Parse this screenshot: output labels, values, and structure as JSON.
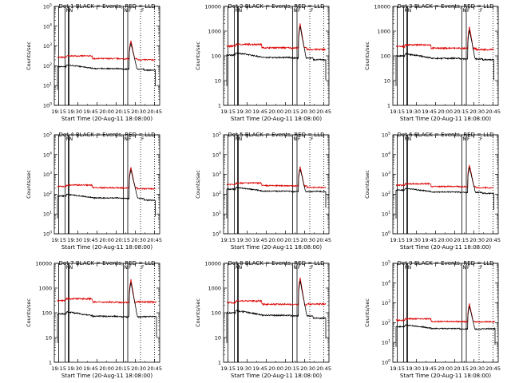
{
  "figure": {
    "title_prefix": "Det ",
    "title_suffix": " BLACK = Events, RED = LLD",
    "xlabel": "Start Time (20-Aug-11 18:08:00)",
    "ylabel": "Counts/sec",
    "colors": {
      "events": "#000000",
      "lld": "#dd0000",
      "axes": "#000000"
    }
  },
  "chart_data": [
    {
      "type": "line",
      "title": "Det 1  BLACK = Events, RED = LLD",
      "detector": "1",
      "y_scale": "log",
      "ylim": [
        1,
        100000
      ],
      "ytick_style": "exp",
      "yticks": [
        1,
        10,
        100,
        1000,
        10000,
        100000
      ],
      "yticklabels": [
        "10^0",
        "10^1",
        "10^2",
        "10^3",
        "10^4",
        "10^5"
      ],
      "xticklabels": [
        "19:15",
        "19:30",
        "19:45",
        "20:00",
        "20:15",
        "20:30",
        "20:45"
      ],
      "events_base": 100,
      "events_fall": 60,
      "events_end_min": 153,
      "lld_base": 280,
      "lld_end": 190,
      "peak": 1800
    },
    {
      "type": "line",
      "title": "Det 2  BLACK = Events, RED = LLD",
      "detector": "2",
      "y_scale": "log",
      "ylim": [
        1,
        10000
      ],
      "ytick_style": "num",
      "yticks": [
        1,
        10,
        100,
        1000,
        10000
      ],
      "yticklabels": [
        "1",
        "10",
        "100",
        "1000",
        "10000"
      ],
      "xticklabels": [
        "19:15",
        "19:30",
        "19:45",
        "20:00",
        "20:15",
        "20:30",
        "20:45"
      ],
      "events_base": 120,
      "events_fall": 70,
      "events_end_min": 155,
      "lld_base": 260,
      "lld_end": 170,
      "peak": 2000
    },
    {
      "type": "line",
      "title": "Det 3  BLACK = Events, RED = LLD",
      "detector": "3",
      "y_scale": "log",
      "ylim": [
        1,
        10000
      ],
      "ytick_style": "num",
      "yticks": [
        1,
        10,
        100,
        1000,
        10000
      ],
      "yticklabels": [
        "1",
        "10",
        "100",
        "1000",
        "10000"
      ],
      "xticklabels": [
        "19:15",
        "19:30",
        "19:45",
        "20:00",
        "20:15",
        "20:30",
        "20:45"
      ],
      "events_base": 110,
      "events_fall": 70,
      "events_end_min": 153,
      "lld_base": 250,
      "lld_end": 170,
      "peak": 1500
    },
    {
      "type": "line",
      "title": "Det 4  BLACK = Events, RED = LLD",
      "detector": "4",
      "y_scale": "log",
      "ylim": [
        1,
        100000
      ],
      "ytick_style": "exp",
      "yticks": [
        1,
        10,
        100,
        1000,
        10000,
        100000
      ],
      "yticklabels": [
        "10^0",
        "10^1",
        "10^2",
        "10^3",
        "10^4",
        "10^5"
      ],
      "xticklabels": [
        "19:15",
        "19:30",
        "19:45",
        "20:00",
        "20:15",
        "20:30",
        "20:45"
      ],
      "events_base": 90,
      "events_fall": 50,
      "events_end_min": 153,
      "lld_base": 260,
      "lld_end": 180,
      "peak": 2200
    },
    {
      "type": "line",
      "title": "Det 5  BLACK = Events, RED = LLD",
      "detector": "5",
      "y_scale": "log",
      "ylim": [
        1,
        100000
      ],
      "ytick_style": "exp",
      "yticks": [
        1,
        10,
        100,
        1000,
        10000,
        100000
      ],
      "yticklabels": [
        "10^0",
        "10^1",
        "10^2",
        "10^3",
        "10^4",
        "10^5"
      ],
      "xticklabels": [
        "19:15",
        "19:30",
        "19:45",
        "20:00",
        "20:15",
        "20:30",
        "20:45"
      ],
      "events_base": 200,
      "events_fall": 140,
      "events_end_min": 155,
      "lld_base": 330,
      "lld_end": 200,
      "peak": 2500
    },
    {
      "type": "line",
      "title": "Det 6  BLACK = Events, RED = LLD",
      "detector": "6",
      "y_scale": "log",
      "ylim": [
        1,
        100000
      ],
      "ytick_style": "exp",
      "yticks": [
        1,
        10,
        100,
        1000,
        10000,
        100000
      ],
      "yticklabels": [
        "10^0",
        "10^1",
        "10^2",
        "10^3",
        "10^4",
        "10^5"
      ],
      "xticklabels": [
        "19:15",
        "19:30",
        "19:45",
        "20:00",
        "20:15",
        "20:30",
        "20:45"
      ],
      "events_base": 180,
      "events_fall": 110,
      "events_end_min": 153,
      "lld_base": 300,
      "lld_end": 200,
      "peak": 3000
    },
    {
      "type": "line",
      "title": "Det 7  BLACK = Events, RED = LLD",
      "detector": "7",
      "y_scale": "log",
      "ylim": [
        1,
        10000
      ],
      "ytick_style": "num",
      "yticks": [
        1,
        10,
        100,
        1000,
        10000
      ],
      "yticklabels": [
        "1",
        "10",
        "100",
        "1000",
        "10000"
      ],
      "xticklabels": [
        "19:15",
        "19:30",
        "19:45",
        "20:00",
        "20:15",
        "20:30",
        "20:45"
      ],
      "events_base": 100,
      "events_fall": 70,
      "events_end_min": 155,
      "lld_base": 330,
      "lld_end": 280,
      "peak": 2200
    },
    {
      "type": "line",
      "title": "Det 8  BLACK = Events, RED = LLD",
      "detector": "8",
      "y_scale": "log",
      "ylim": [
        1,
        10000
      ],
      "ytick_style": "num",
      "yticks": [
        1,
        10,
        100,
        1000,
        10000
      ],
      "yticklabels": [
        "1",
        "10",
        "100",
        "1000",
        "10000"
      ],
      "xticklabels": [
        "19:15",
        "19:30",
        "19:45",
        "20:00",
        "20:15",
        "20:30",
        "20:45"
      ],
      "events_base": 110,
      "events_fall": 60,
      "events_end_min": 155,
      "lld_base": 270,
      "lld_end": 230,
      "peak": 2600
    },
    {
      "type": "line",
      "title": "Det 9  BLACK = Events, RED = LLD",
      "detector": "9",
      "y_scale": "log",
      "ylim": [
        1,
        100000
      ],
      "ytick_style": "exp",
      "yticks": [
        1,
        10,
        100,
        1000,
        10000,
        100000
      ],
      "yticklabels": [
        "10^0",
        "10^1",
        "10^2",
        "10^3",
        "10^4",
        "10^5"
      ],
      "xticklabels": [
        "19:15",
        "19:30",
        "19:45",
        "20:00",
        "20:15",
        "20:30",
        "20:45"
      ],
      "events_base": 70,
      "events_fall": 50,
      "events_end_min": 155,
      "lld_base": 140,
      "lld_end": 110,
      "peak": 900
    }
  ],
  "markers": {
    "x_range_min": [
      -5,
      160
    ],
    "x_ticks_min": [
      2,
      32,
      62,
      92,
      122,
      152
    ],
    "x_ticks_min_full": [
      2,
      17,
      32,
      47,
      62,
      77,
      92,
      107,
      122,
      137,
      152
    ],
    "solid_lines_min": [
      2,
      12,
      17,
      18,
      103,
      110
    ],
    "dotted_lines_min": [
      130,
      152
    ],
    "flag_labels": [
      {
        "min": 12,
        "text": "N"
      },
      {
        "min": 17,
        "text": "N"
      },
      {
        "min": 103,
        "text": "N"
      },
      {
        "min": 110,
        "text": "F"
      },
      {
        "min": 130,
        "text": "F"
      }
    ]
  }
}
